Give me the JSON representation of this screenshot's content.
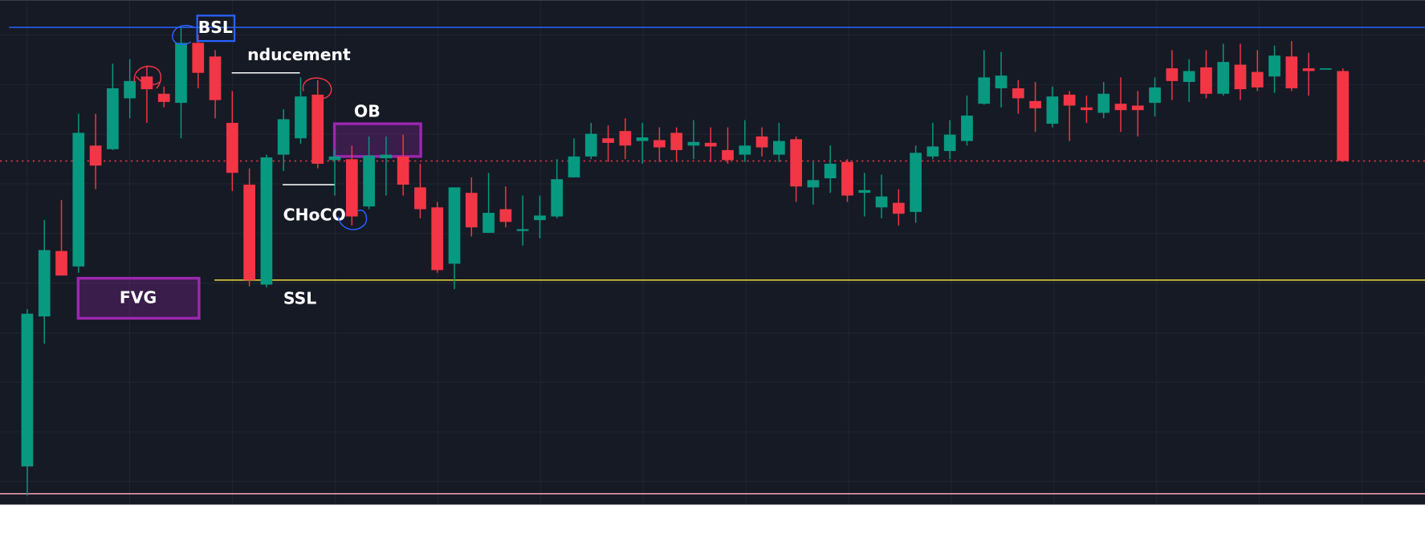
{
  "chart_data": {
    "type": "candlestick",
    "up_color": "#089981",
    "down_color": "#f23645",
    "ylim": [
      0,
      555
    ],
    "grid": true,
    "open": [
      42,
      207,
      279,
      262,
      395,
      391,
      447,
      471,
      452,
      442,
      508,
      493,
      420,
      352,
      242,
      385,
      403,
      451,
      379,
      380,
      328,
      381,
      383,
      349,
      327,
      265,
      343,
      299,
      325,
      301,
      313,
      317,
      360,
      383,
      403,
      411,
      400,
      401,
      409,
      395,
      398,
      390,
      385,
      405,
      385,
      402,
      349,
      359,
      377,
      343,
      327,
      332,
      322,
      383,
      389,
      400,
      441,
      458,
      458,
      444,
      419,
      451,
      437,
      431,
      441,
      439,
      442,
      480,
      465,
      481,
      452,
      484,
      476,
      471,
      493,
      480,
      479,
      477
    ],
    "high": [
      215,
      313,
      335,
      430,
      430,
      485,
      490,
      483,
      460,
      525,
      517,
      500,
      455,
      370,
      385,
      435,
      470,
      467,
      390,
      395,
      405,
      405,
      407,
      375,
      333,
      349,
      360,
      365,
      350,
      340,
      340,
      380,
      403,
      420,
      417,
      425,
      420,
      415,
      415,
      423,
      415,
      415,
      423,
      415,
      420,
      405,
      377,
      395,
      380,
      365,
      363,
      347,
      395,
      420,
      423,
      450,
      500,
      498,
      467,
      465,
      460,
      455,
      450,
      465,
      470,
      455,
      470,
      500,
      490,
      500,
      507,
      507,
      500,
      505,
      510,
      497,
      480,
      480
    ],
    "low": [
      10,
      177,
      252,
      255,
      347,
      390,
      425,
      420,
      437,
      403,
      458,
      425,
      345,
      240,
      239,
      367,
      397,
      370,
      340,
      307,
      325,
      340,
      340,
      315,
      255,
      237,
      295,
      299,
      305,
      285,
      293,
      315,
      360,
      380,
      377,
      380,
      375,
      377,
      377,
      380,
      377,
      375,
      377,
      383,
      377,
      333,
      330,
      343,
      333,
      317,
      315,
      307,
      310,
      380,
      380,
      395,
      440,
      437,
      430,
      410,
      415,
      400,
      420,
      425,
      410,
      405,
      427,
      445,
      443,
      447,
      450,
      445,
      455,
      453,
      455,
      450,
      479,
      377
    ],
    "close": [
      210,
      280,
      252,
      409,
      373,
      458,
      466,
      457,
      443,
      508,
      475,
      445,
      365,
      247,
      382,
      424,
      449,
      375,
      383,
      317,
      384,
      385,
      352,
      325,
      258,
      349,
      305,
      321,
      311,
      303,
      318,
      358,
      383,
      408,
      398,
      395,
      404,
      393,
      390,
      399,
      394,
      379,
      395,
      393,
      400,
      350,
      357,
      375,
      340,
      346,
      339,
      320,
      387,
      394,
      407,
      428,
      470,
      472,
      447,
      436,
      449,
      439,
      434,
      452,
      434,
      434,
      459,
      466,
      477,
      452,
      487,
      457,
      459,
      494,
      458,
      477,
      480,
      378
    ],
    "levels": [
      {
        "value": 525,
        "color": "#2962ff"
      },
      {
        "value": 378,
        "color": "#f23645",
        "dashed": true
      },
      {
        "value": 247,
        "color": "#ffeb3b"
      },
      {
        "value": 12,
        "color": "#f7a8b8"
      }
    ],
    "zones": [
      {
        "label": "OB",
        "top": 419,
        "bottom": 383,
        "color": "#9c27b0"
      },
      {
        "label": "FVG",
        "top": 249,
        "bottom": 205,
        "color": "#9c27b0"
      }
    ],
    "annotations": [
      {
        "text": "BSL"
      },
      {
        "text": "nducement",
        "value": 475
      },
      {
        "text": "CHoCO",
        "value": 352
      },
      {
        "text": "SSL"
      }
    ]
  }
}
